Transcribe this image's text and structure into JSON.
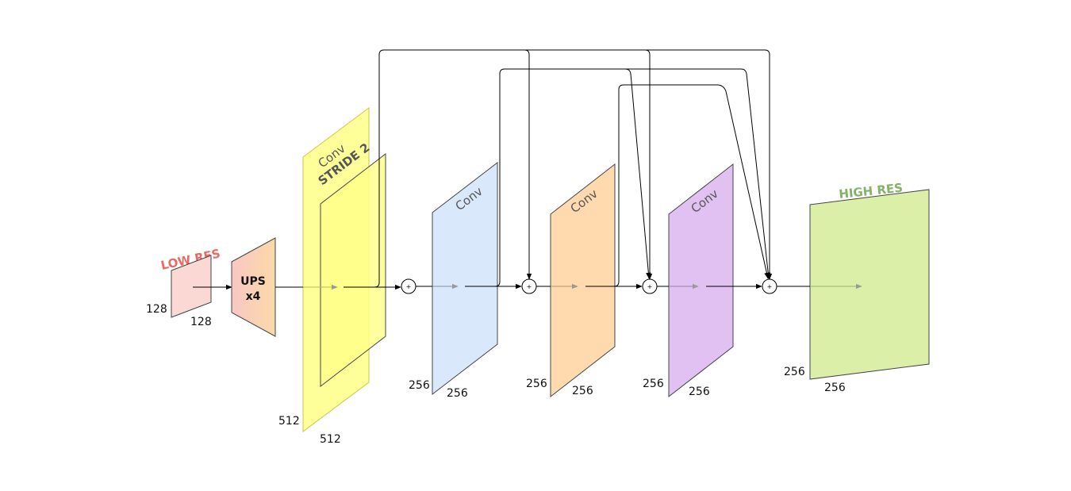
{
  "input": {
    "label": "LOW RES",
    "label_color": "#ea6b66",
    "dim_h": "128",
    "dim_w": "128",
    "fill": "#fad9d5"
  },
  "upsample": {
    "line1": "UPS",
    "line2": "x4"
  },
  "stride_conv": {
    "label1": "Conv",
    "label2": "STRIDE 2",
    "dim_h": "512",
    "dim_w": "512",
    "fill": "#ffff88"
  },
  "blocks": [
    {
      "label": "Conv",
      "dim_h": "256",
      "dim_w": "256",
      "fill": "#dae8fc"
    },
    {
      "label": "Conv",
      "dim_h": "256",
      "dim_w": "256",
      "fill": "#ffdaaf"
    },
    {
      "label": "Conv",
      "dim_h": "256",
      "dim_w": "256",
      "fill": "#e1c0f2"
    }
  ],
  "output": {
    "label": "HIGH RES",
    "label_color": "#82b366",
    "dim_h": "256",
    "dim_w": "256",
    "fill": "#dcefa9"
  },
  "sum_symbol": "+"
}
